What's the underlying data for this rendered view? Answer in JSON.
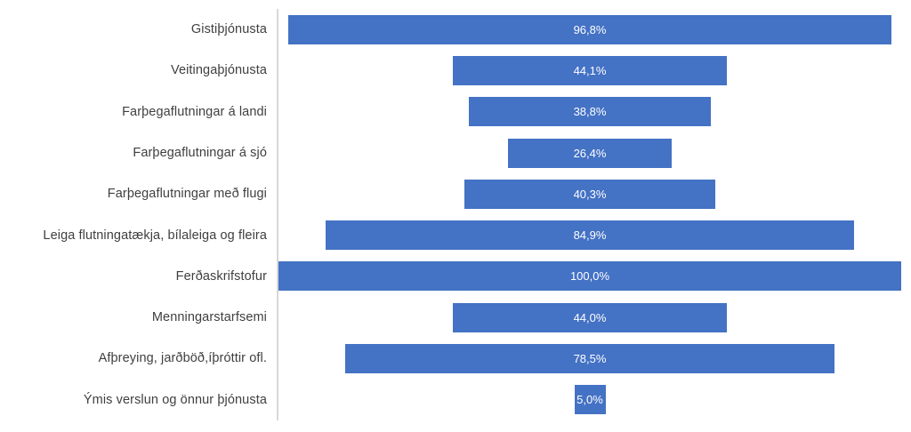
{
  "chart_data": {
    "type": "bar",
    "subtype": "centered-funnel",
    "orientation": "horizontal",
    "title": "",
    "xlabel": "",
    "ylabel": "",
    "xlim": [
      0,
      100
    ],
    "grid": false,
    "legend": false,
    "categories": [
      "Gistiþjónusta",
      "Veitingaþjónusta",
      "Farþegaflutningar á landi",
      "Farþegaflutningar á sjó",
      "Farþegaflutningar með flugi",
      "Leiga flutningatækja, bílaleiga og fleira",
      "Ferðaskrifstofur",
      "Menningarstarfsemi",
      "Afþreying, jarðböð,íþróttir ofl.",
      "Ýmis verslun og önnur þjónusta"
    ],
    "values": [
      96.8,
      44.1,
      38.8,
      26.4,
      40.3,
      84.9,
      100.0,
      44.0,
      78.5,
      5.0
    ],
    "value_labels": [
      "96,8%",
      "44,1%",
      "38,8%",
      "26,4%",
      "40,3%",
      "84,9%",
      "100,0%",
      "44,0%",
      "78,5%",
      "5,0%"
    ],
    "colors": {
      "bar_fill": "#4472C4",
      "value_label_text": "#FFFFFF",
      "category_label_text": "#3F3F3F",
      "axis_line": "#D8D8D8",
      "background": "#FFFFFF"
    }
  }
}
